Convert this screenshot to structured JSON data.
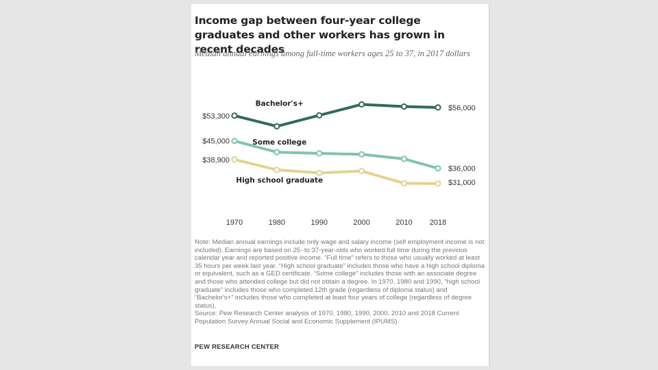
{
  "title": "Income gap between four-year college graduates and other workers has grown in recent decades",
  "subtitle": "Median annual earnings among full-time workers ages 25 to 37, in 2017 dollars",
  "note": "Note: Median annual earnings include only wage and salary income (self employment income is not included). Earnings are based on 25- to 37-year-olds who worked full time during the previous calendar year and reported positive income. “Full time” refers to those who usually worked at least 35 hours per week last year. “High school graduate” includes those who have a high school diploma or equivalent, such as a GED certificate. “Some college” includes those with an associate degree and those who attended college but did not obtain a degree. In 1970, 1980 and 1990, “high school graduate” includes those who completed 12th grade (regardless of diploma status) and “Bachelor's+” includes those who completed at least four years of college (regardless of degree status).",
  "source": "Source: Pew Research Center analysis of 1970, 1980, 1990, 2000, 2010 and 2018 Current Population Survey Annual Social and Economic Supplement (IPUMS).",
  "credit": "PEW RESEARCH CENTER",
  "chart_data": {
    "type": "line",
    "x": [
      1970,
      1980,
      1990,
      2000,
      2010,
      2018
    ],
    "x_tick_labels": [
      "1970",
      "1980",
      "1990",
      "2000",
      "2010",
      "2018"
    ],
    "ylim": [
      24000,
      60000
    ],
    "grid": false,
    "series": [
      {
        "name": "Bachelor's+",
        "color": "#2f6b5a",
        "values": [
          53300,
          49800,
          53400,
          57000,
          56300,
          56000
        ],
        "start_label": "$53,300",
        "end_label": "$56,000"
      },
      {
        "name": "Some college",
        "color": "#7ec4b3",
        "values": [
          45000,
          41300,
          40900,
          40600,
          39100,
          36000
        ],
        "start_label": "$45,000",
        "end_label": "$36,000"
      },
      {
        "name": "High school graduate",
        "color": "#e3d28f",
        "values": [
          38900,
          35500,
          34500,
          35100,
          31100,
          31000
        ],
        "start_label": "$38,900",
        "end_label": "$31,000"
      }
    ]
  }
}
